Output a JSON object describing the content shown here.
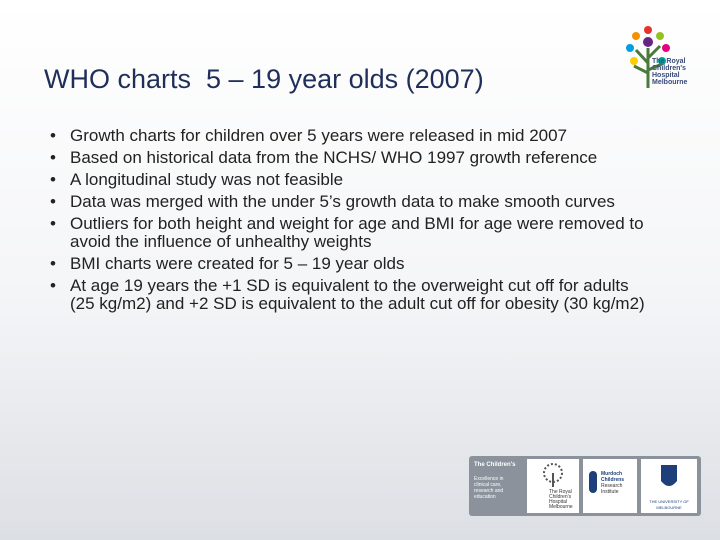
{
  "header": {
    "title": "WHO charts  5 – 19 year olds (2007)",
    "logo_text": [
      "The Royal",
      "Children's",
      "Hospital",
      "Melbourne"
    ]
  },
  "bullets": [
    "Growth charts for children over 5 years were released in mid 2007",
    "Based on historical data from the NCHS/ WHO 1997 growth reference",
    "A longitudinal study was not feasible",
    "Data was merged with the under 5’s growth data to make smooth curves",
    "Outliers for both height and weight for age and BMI for age were removed to avoid the influence of unhealthy weights",
    "BMI charts were created for 5 – 19 year olds",
    "At age 19 years the +1 SD is equivalent to the overweight cut off for adults (25 kg/m2) and +2 SD is equivalent to the adult cut off for obesity (30 kg/m2)"
  ],
  "footer": {
    "campus_title": "The Children's",
    "campus_text": [
      "Excellence in",
      "clinical care,",
      "research and",
      "education"
    ],
    "rch": [
      "The Royal",
      "Children's",
      "Hospital",
      "Melbourne"
    ],
    "mcri": [
      "Murdoch",
      "Childrens",
      "Research",
      "Institute"
    ],
    "uom": "THE UNIVERSITY OF MELBOURNE"
  }
}
